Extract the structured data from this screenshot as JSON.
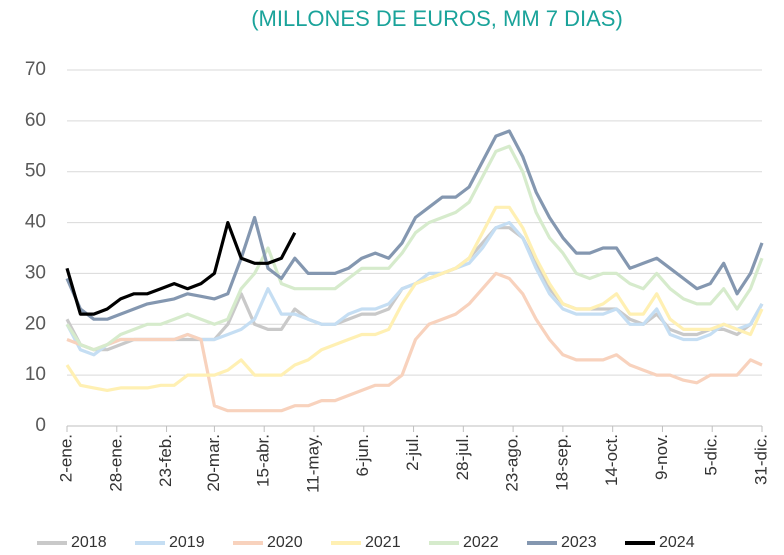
{
  "chart_data": {
    "type": "line",
    "title": "(MILLONES DE EUROS, MM 7 DIAS)",
    "x": [
      2,
      9,
      16,
      23,
      30,
      37,
      44,
      51,
      58,
      65,
      72,
      79,
      86,
      93,
      100,
      107,
      114,
      121,
      128,
      135,
      142,
      149,
      156,
      163,
      170,
      177,
      184,
      191,
      198,
      205,
      212,
      219,
      226,
      233,
      240,
      247,
      254,
      261,
      268,
      275,
      282,
      289,
      296,
      303,
      310,
      317,
      324,
      331,
      338,
      345,
      352,
      359,
      365
    ],
    "xlim": [
      2,
      365
    ],
    "xticks": [
      {
        "value": 2,
        "label": "2-ene."
      },
      {
        "value": 28,
        "label": "28-ene."
      },
      {
        "value": 54,
        "label": "23-feb."
      },
      {
        "value": 79,
        "label": "20-mar."
      },
      {
        "value": 105,
        "label": "15-abr."
      },
      {
        "value": 131,
        "label": "11-may."
      },
      {
        "value": 157,
        "label": "6-jun."
      },
      {
        "value": 183,
        "label": "2-jul."
      },
      {
        "value": 209,
        "label": "28-jul."
      },
      {
        "value": 235,
        "label": "23-ago."
      },
      {
        "value": 261,
        "label": "18-sep."
      },
      {
        "value": 287,
        "label": "14-oct."
      },
      {
        "value": 313,
        "label": "9-nov."
      },
      {
        "value": 339,
        "label": "5-dic."
      },
      {
        "value": 365,
        "label": "31-dic."
      }
    ],
    "ylim": [
      0,
      70
    ],
    "yticks": [
      0,
      10,
      20,
      30,
      40,
      50,
      60,
      70
    ],
    "grid": true,
    "legend": "bottom",
    "series": [
      {
        "name": "2018",
        "color": "#c9c9c9",
        "values": [
          21,
          16,
          15,
          15,
          16,
          17,
          17,
          17,
          17,
          17,
          17,
          17,
          20,
          26,
          20,
          19,
          19,
          23,
          21,
          20,
          20,
          21,
          22,
          22,
          23,
          27,
          28,
          29,
          30,
          31,
          33,
          36,
          39,
          39,
          37,
          32,
          27,
          24,
          23,
          23,
          23,
          23,
          21,
          20,
          22,
          19,
          18,
          18,
          19,
          19,
          18,
          20,
          24
        ]
      },
      {
        "name": "2019",
        "color": "#c5def3",
        "values": [
          20,
          15,
          14,
          16,
          17,
          17,
          17,
          17,
          17,
          18,
          17,
          17,
          18,
          19,
          21,
          27,
          22,
          22,
          21,
          20,
          20,
          22,
          23,
          23,
          24,
          27,
          28,
          30,
          30,
          31,
          32,
          35,
          39,
          40,
          37,
          31,
          26,
          23,
          22,
          22,
          22,
          23,
          20,
          20,
          23,
          18,
          17,
          17,
          18,
          20,
          19,
          20,
          24
        ]
      },
      {
        "name": "2020",
        "color": "#f8d2bd",
        "values": [
          17,
          16,
          15,
          16,
          17,
          17,
          17,
          17,
          17,
          18,
          17,
          4,
          3,
          3,
          3,
          3,
          3,
          4,
          4,
          5,
          5,
          6,
          7,
          8,
          8,
          10,
          17,
          20,
          21,
          22,
          24,
          27,
          30,
          29,
          26,
          21,
          17,
          14,
          13,
          13,
          13,
          14,
          12,
          11,
          10,
          10,
          9,
          8.5,
          10,
          10,
          10,
          13,
          12
        ]
      },
      {
        "name": "2021",
        "color": "#fff0b3",
        "values": [
          12,
          8,
          7.5,
          7,
          7.5,
          7.5,
          7.5,
          8,
          8,
          10,
          10,
          10,
          11,
          13,
          10,
          10,
          10,
          12,
          13,
          15,
          16,
          17,
          18,
          18,
          19,
          24,
          28,
          29,
          30,
          31,
          33,
          38,
          43,
          43,
          39,
          33,
          28,
          24,
          23,
          23,
          24,
          26,
          22,
          22,
          26,
          21,
          19,
          19,
          19,
          20,
          19,
          18,
          23
        ]
      },
      {
        "name": "2022",
        "color": "#d6ebcc",
        "values": [
          20,
          16,
          15,
          16,
          18,
          19,
          20,
          20,
          21,
          22,
          21,
          20,
          21,
          27,
          30,
          35,
          28,
          27,
          27,
          27,
          27,
          29,
          31,
          31,
          31,
          34,
          38,
          40,
          41,
          42,
          44,
          49,
          54,
          55,
          50,
          42,
          37,
          34,
          30,
          29,
          30,
          30,
          28,
          27,
          30,
          27,
          25,
          24,
          24,
          27,
          23,
          27,
          33
        ]
      },
      {
        "name": "2023",
        "color": "#8497b0",
        "values": [
          29,
          23,
          21,
          21,
          22,
          23,
          24,
          24.5,
          25,
          26,
          25.5,
          25,
          26,
          33,
          41,
          31,
          29,
          33,
          30,
          30,
          30,
          31,
          33,
          34,
          33,
          36,
          41,
          43,
          45,
          45,
          47,
          52,
          57,
          58,
          53,
          46,
          41,
          37,
          34,
          34,
          35,
          35,
          31,
          32,
          33,
          31,
          29,
          27,
          28,
          32,
          26,
          30,
          36
        ]
      },
      {
        "name": "2024",
        "color": "#000000",
        "values": [
          31,
          22,
          22,
          23,
          25,
          26,
          26,
          27,
          28,
          27,
          28,
          30,
          40,
          33,
          32,
          32,
          33,
          38,
          null,
          null,
          null,
          null,
          null,
          null,
          null,
          null,
          null,
          null,
          null,
          null,
          null,
          null,
          null,
          null,
          null,
          null,
          null,
          null,
          null,
          null,
          null,
          null,
          null,
          null,
          null,
          null,
          null,
          null,
          null,
          null,
          null,
          null,
          null
        ]
      }
    ]
  }
}
